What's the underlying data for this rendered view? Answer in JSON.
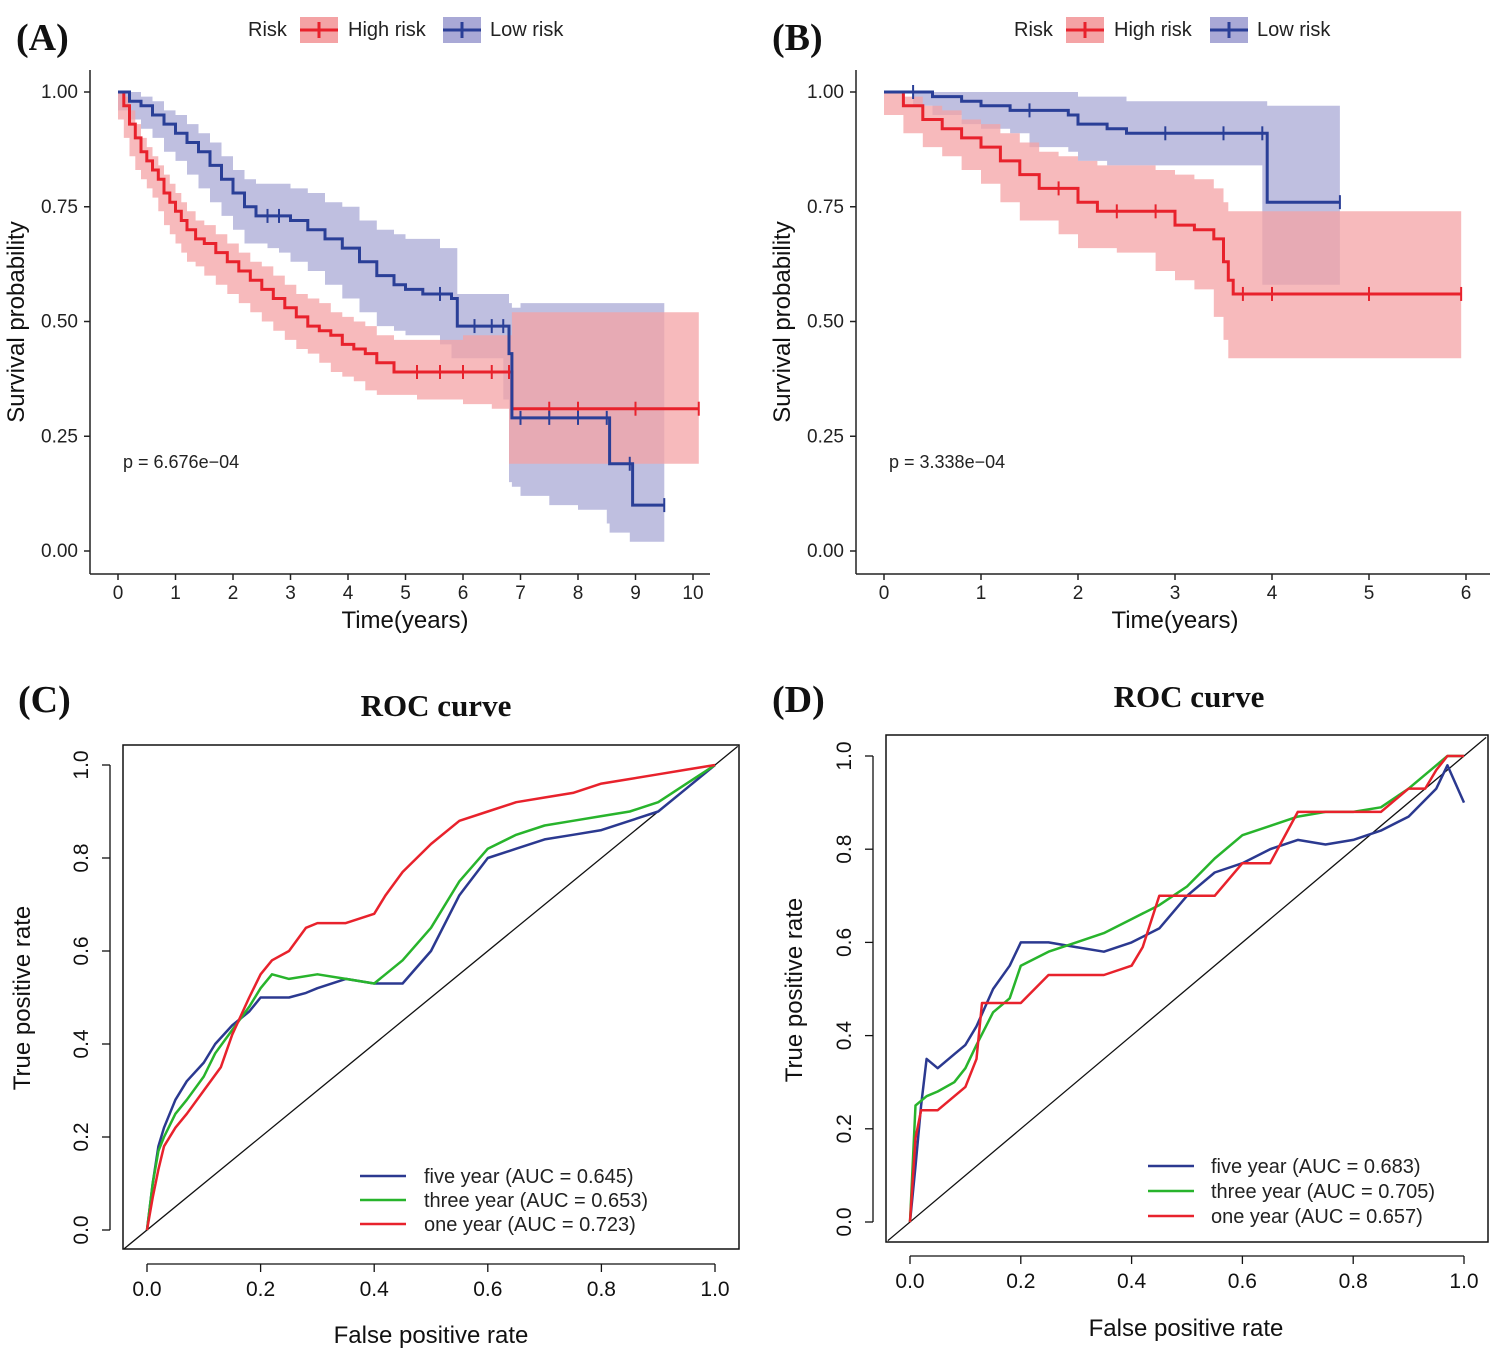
{
  "chart_data": [
    {
      "panel": "(A)",
      "type": "line",
      "subtype": "kaplan-meier",
      "title": "",
      "xlabel": "Time(years)",
      "ylabel": "Survival probability",
      "xlim": [
        0,
        10
      ],
      "ylim": [
        0,
        1
      ],
      "xticks": [
        0,
        1,
        2,
        3,
        4,
        5,
        6,
        7,
        8,
        9,
        10
      ],
      "yticks": [
        0.0,
        0.25,
        0.5,
        0.75,
        1.0
      ],
      "ytick_labels": [
        "0.00",
        "0.25",
        "0.50",
        "0.75",
        "1.00"
      ],
      "legend_title": "Risk",
      "legend_position": "top",
      "annotation": "p = 6.676e−04",
      "series": [
        {
          "name": "High risk",
          "color": "#e8222c",
          "ci_color": "#f4a3a5",
          "x": [
            0,
            0.1,
            0.2,
            0.3,
            0.4,
            0.5,
            0.6,
            0.7,
            0.8,
            0.9,
            1.0,
            1.1,
            1.2,
            1.35,
            1.5,
            1.7,
            1.9,
            2.1,
            2.3,
            2.5,
            2.7,
            2.9,
            3.1,
            3.3,
            3.5,
            3.7,
            3.9,
            4.1,
            4.3,
            4.5,
            4.8,
            5.2,
            5.6,
            6.0,
            6.5,
            6.8,
            6.85,
            7.5,
            8.0,
            9.0,
            10.1
          ],
          "values": [
            1.0,
            0.97,
            0.93,
            0.9,
            0.87,
            0.85,
            0.83,
            0.81,
            0.78,
            0.76,
            0.74,
            0.72,
            0.7,
            0.68,
            0.67,
            0.65,
            0.63,
            0.61,
            0.59,
            0.57,
            0.55,
            0.53,
            0.51,
            0.49,
            0.48,
            0.47,
            0.45,
            0.44,
            0.43,
            0.41,
            0.39,
            0.39,
            0.39,
            0.39,
            0.39,
            0.39,
            0.31,
            0.31,
            0.31,
            0.31,
            0.31
          ],
          "upper": [
            1.0,
            0.99,
            0.96,
            0.93,
            0.9,
            0.88,
            0.86,
            0.84,
            0.82,
            0.8,
            0.78,
            0.76,
            0.74,
            0.72,
            0.71,
            0.69,
            0.67,
            0.65,
            0.63,
            0.62,
            0.6,
            0.58,
            0.56,
            0.55,
            0.54,
            0.52,
            0.51,
            0.5,
            0.49,
            0.47,
            0.46,
            0.46,
            0.46,
            0.47,
            0.47,
            0.47,
            0.52,
            0.52,
            0.52,
            0.52,
            0.52
          ],
          "lower": [
            1.0,
            0.94,
            0.9,
            0.86,
            0.83,
            0.81,
            0.79,
            0.77,
            0.74,
            0.71,
            0.69,
            0.67,
            0.65,
            0.63,
            0.62,
            0.6,
            0.58,
            0.56,
            0.54,
            0.52,
            0.5,
            0.48,
            0.46,
            0.44,
            0.43,
            0.41,
            0.39,
            0.38,
            0.37,
            0.35,
            0.34,
            0.34,
            0.33,
            0.33,
            0.32,
            0.31,
            0.19,
            0.19,
            0.19,
            0.19,
            0.19
          ]
        },
        {
          "name": "Low risk",
          "color": "#2a3f97",
          "ci_color": "#a9a9d6",
          "x": [
            0,
            0.2,
            0.4,
            0.6,
            0.8,
            1.0,
            1.2,
            1.4,
            1.6,
            1.8,
            2.0,
            2.2,
            2.4,
            2.6,
            2.8,
            3.0,
            3.3,
            3.6,
            3.9,
            4.2,
            4.5,
            4.8,
            5.0,
            5.3,
            5.6,
            5.8,
            5.9,
            6.2,
            6.5,
            6.7,
            6.8,
            6.85,
            7.0,
            7.5,
            8.0,
            8.5,
            8.55,
            8.9,
            8.95,
            9.5
          ],
          "values": [
            1.0,
            0.98,
            0.97,
            0.95,
            0.93,
            0.91,
            0.89,
            0.87,
            0.84,
            0.81,
            0.78,
            0.75,
            0.73,
            0.73,
            0.73,
            0.72,
            0.7,
            0.68,
            0.66,
            0.63,
            0.6,
            0.58,
            0.57,
            0.56,
            0.56,
            0.55,
            0.49,
            0.49,
            0.49,
            0.49,
            0.43,
            0.29,
            0.29,
            0.29,
            0.29,
            0.29,
            0.19,
            0.19,
            0.1,
            0.1
          ],
          "upper": [
            1.0,
            1.0,
            0.99,
            0.98,
            0.96,
            0.95,
            0.93,
            0.91,
            0.89,
            0.86,
            0.83,
            0.81,
            0.8,
            0.8,
            0.8,
            0.79,
            0.78,
            0.76,
            0.75,
            0.72,
            0.7,
            0.69,
            0.68,
            0.68,
            0.66,
            0.66,
            0.56,
            0.56,
            0.56,
            0.56,
            0.54,
            0.53,
            0.54,
            0.54,
            0.54,
            0.54,
            0.54,
            0.54,
            0.54,
            0.54
          ],
          "lower": [
            1.0,
            0.96,
            0.94,
            0.92,
            0.9,
            0.87,
            0.85,
            0.82,
            0.79,
            0.76,
            0.73,
            0.7,
            0.67,
            0.67,
            0.66,
            0.65,
            0.63,
            0.61,
            0.58,
            0.55,
            0.52,
            0.49,
            0.48,
            0.47,
            0.47,
            0.45,
            0.42,
            0.42,
            0.42,
            0.42,
            0.33,
            0.15,
            0.14,
            0.12,
            0.1,
            0.09,
            0.06,
            0.04,
            0.02,
            0.02
          ]
        }
      ]
    },
    {
      "panel": "(B)",
      "type": "line",
      "subtype": "kaplan-meier",
      "title": "",
      "xlabel": "Time(years)",
      "ylabel": "Survival probability",
      "xlim": [
        0,
        6
      ],
      "ylim": [
        0,
        1
      ],
      "xticks": [
        0,
        1,
        2,
        3,
        4,
        5,
        6
      ],
      "yticks": [
        0.0,
        0.25,
        0.5,
        0.75,
        1.0
      ],
      "ytick_labels": [
        "0.00",
        "0.25",
        "0.50",
        "0.75",
        "1.00"
      ],
      "legend_title": "Risk",
      "legend_position": "top",
      "annotation": "p = 3.338e−04",
      "series": [
        {
          "name": "High risk",
          "color": "#e8222c",
          "ci_color": "#f4a3a5",
          "x": [
            0,
            0.2,
            0.4,
            0.6,
            0.8,
            1.0,
            1.2,
            1.4,
            1.6,
            1.8,
            2.0,
            2.2,
            2.4,
            2.8,
            3.0,
            3.2,
            3.4,
            3.5,
            3.55,
            3.6,
            3.7,
            4.0,
            5.0,
            5.95
          ],
          "values": [
            1.0,
            0.97,
            0.94,
            0.92,
            0.9,
            0.88,
            0.85,
            0.82,
            0.79,
            0.79,
            0.76,
            0.74,
            0.74,
            0.74,
            0.71,
            0.7,
            0.68,
            0.63,
            0.59,
            0.56,
            0.56,
            0.56,
            0.56,
            0.56
          ],
          "upper": [
            1.0,
            0.99,
            0.97,
            0.96,
            0.94,
            0.93,
            0.91,
            0.89,
            0.87,
            0.86,
            0.85,
            0.84,
            0.84,
            0.83,
            0.82,
            0.81,
            0.79,
            0.76,
            0.74,
            0.74,
            0.74,
            0.74,
            0.74,
            0.74
          ],
          "lower": [
            1.0,
            0.95,
            0.91,
            0.88,
            0.86,
            0.83,
            0.8,
            0.76,
            0.72,
            0.72,
            0.69,
            0.66,
            0.66,
            0.65,
            0.61,
            0.59,
            0.57,
            0.51,
            0.46,
            0.42,
            0.42,
            0.42,
            0.42,
            0.42
          ]
        },
        {
          "name": "Low risk",
          "color": "#2a3f97",
          "ci_color": "#a9a9d6",
          "x": [
            0,
            0.3,
            0.5,
            0.8,
            1.0,
            1.3,
            1.5,
            1.9,
            2.0,
            2.3,
            2.5,
            2.9,
            3.5,
            3.9,
            3.95,
            4.7
          ],
          "values": [
            1.0,
            1.0,
            0.99,
            0.98,
            0.97,
            0.96,
            0.96,
            0.95,
            0.93,
            0.92,
            0.91,
            0.91,
            0.91,
            0.91,
            0.76,
            0.76
          ],
          "upper": [
            1.0,
            1.0,
            1.0,
            1.0,
            1.0,
            1.0,
            1.0,
            1.0,
            0.99,
            0.99,
            0.98,
            0.98,
            0.98,
            0.98,
            0.97,
            0.97
          ],
          "lower": [
            1.0,
            1.0,
            0.97,
            0.95,
            0.93,
            0.92,
            0.91,
            0.88,
            0.87,
            0.85,
            0.84,
            0.84,
            0.84,
            0.84,
            0.58,
            0.58
          ]
        }
      ]
    },
    {
      "panel": "(C)",
      "type": "line",
      "subtype": "roc",
      "title": "ROC curve",
      "xlabel": "False positive rate",
      "ylabel": "True positive rate",
      "xlim": [
        0,
        1
      ],
      "ylim": [
        0,
        1
      ],
      "xticks": [
        0.0,
        0.2,
        0.4,
        0.6,
        0.8,
        1.0
      ],
      "yticks": [
        0.0,
        0.2,
        0.4,
        0.6,
        0.8,
        1.0
      ],
      "tick_labels": [
        "0.0",
        "0.2",
        "0.4",
        "0.6",
        "0.8",
        "1.0"
      ],
      "legend_position": "bottom-right",
      "series": [
        {
          "name": "five year",
          "label": "five year (AUC = 0.645)",
          "auc": 0.645,
          "color": "#2b3990",
          "x": [
            0.0,
            0.01,
            0.02,
            0.03,
            0.05,
            0.07,
            0.1,
            0.12,
            0.15,
            0.18,
            0.2,
            0.22,
            0.25,
            0.28,
            0.3,
            0.35,
            0.4,
            0.45,
            0.5,
            0.55,
            0.6,
            0.65,
            0.7,
            0.75,
            0.8,
            0.85,
            0.9,
            0.95,
            1.0
          ],
          "values": [
            0.0,
            0.1,
            0.18,
            0.22,
            0.28,
            0.32,
            0.36,
            0.4,
            0.44,
            0.47,
            0.5,
            0.5,
            0.5,
            0.51,
            0.52,
            0.54,
            0.53,
            0.53,
            0.6,
            0.72,
            0.8,
            0.82,
            0.84,
            0.85,
            0.86,
            0.88,
            0.9,
            0.95,
            1.0
          ]
        },
        {
          "name": "three year",
          "label": "three year (AUC = 0.653)",
          "auc": 0.653,
          "color": "#28b42c",
          "x": [
            0.0,
            0.01,
            0.02,
            0.03,
            0.05,
            0.07,
            0.1,
            0.12,
            0.15,
            0.18,
            0.2,
            0.22,
            0.25,
            0.3,
            0.35,
            0.4,
            0.45,
            0.5,
            0.55,
            0.6,
            0.65,
            0.7,
            0.75,
            0.8,
            0.85,
            0.9,
            0.95,
            1.0
          ],
          "values": [
            0.0,
            0.1,
            0.17,
            0.2,
            0.25,
            0.28,
            0.33,
            0.38,
            0.43,
            0.48,
            0.52,
            0.55,
            0.54,
            0.55,
            0.54,
            0.53,
            0.58,
            0.65,
            0.75,
            0.82,
            0.85,
            0.87,
            0.88,
            0.89,
            0.9,
            0.92,
            0.96,
            1.0
          ]
        },
        {
          "name": "one year",
          "label": "one year (AUC = 0.723)",
          "auc": 0.723,
          "color": "#e8222c",
          "x": [
            0.0,
            0.01,
            0.02,
            0.03,
            0.05,
            0.07,
            0.1,
            0.13,
            0.15,
            0.18,
            0.2,
            0.22,
            0.25,
            0.28,
            0.3,
            0.35,
            0.4,
            0.42,
            0.45,
            0.5,
            0.55,
            0.6,
            0.65,
            0.7,
            0.75,
            0.8,
            0.85,
            0.9,
            0.95,
            1.0
          ],
          "values": [
            0.0,
            0.07,
            0.13,
            0.18,
            0.22,
            0.25,
            0.3,
            0.35,
            0.42,
            0.5,
            0.55,
            0.58,
            0.6,
            0.65,
            0.66,
            0.66,
            0.68,
            0.72,
            0.77,
            0.83,
            0.88,
            0.9,
            0.92,
            0.93,
            0.94,
            0.96,
            0.97,
            0.98,
            0.99,
            1.0
          ]
        }
      ],
      "reference_line": "diagonal"
    },
    {
      "panel": "(D)",
      "type": "line",
      "subtype": "roc",
      "title": "ROC curve",
      "xlabel": "False positive rate",
      "ylabel": "True positive rate",
      "xlim": [
        0,
        1
      ],
      "ylim": [
        0,
        1
      ],
      "xticks": [
        0.0,
        0.2,
        0.4,
        0.6,
        0.8,
        1.0
      ],
      "yticks": [
        0.0,
        0.2,
        0.4,
        0.6,
        0.8,
        1.0
      ],
      "tick_labels": [
        "0.0",
        "0.2",
        "0.4",
        "0.6",
        "0.8",
        "1.0"
      ],
      "legend_position": "bottom-right",
      "series": [
        {
          "name": "five year",
          "label": "five year (AUC = 0.683)",
          "auc": 0.683,
          "color": "#2b3990",
          "x": [
            0.0,
            0.01,
            0.02,
            0.03,
            0.05,
            0.08,
            0.1,
            0.12,
            0.15,
            0.18,
            0.2,
            0.25,
            0.3,
            0.35,
            0.4,
            0.45,
            0.5,
            0.55,
            0.6,
            0.65,
            0.7,
            0.75,
            0.8,
            0.85,
            0.9,
            0.95,
            0.97,
            1.0
          ],
          "values": [
            0.0,
            0.12,
            0.25,
            0.35,
            0.33,
            0.36,
            0.38,
            0.42,
            0.5,
            0.55,
            0.6,
            0.6,
            0.59,
            0.58,
            0.6,
            0.63,
            0.7,
            0.75,
            0.77,
            0.8,
            0.82,
            0.81,
            0.82,
            0.84,
            0.87,
            0.93,
            0.98,
            0.9
          ]
        },
        {
          "name": "three year",
          "label": "three year (AUC = 0.705)",
          "auc": 0.705,
          "color": "#28b42c",
          "x": [
            0.0,
            0.01,
            0.02,
            0.03,
            0.05,
            0.08,
            0.1,
            0.12,
            0.15,
            0.18,
            0.2,
            0.25,
            0.3,
            0.35,
            0.4,
            0.45,
            0.5,
            0.55,
            0.6,
            0.65,
            0.7,
            0.75,
            0.8,
            0.85,
            0.9,
            0.95,
            0.97,
            1.0
          ],
          "values": [
            0.0,
            0.25,
            0.26,
            0.27,
            0.28,
            0.3,
            0.33,
            0.38,
            0.45,
            0.48,
            0.55,
            0.58,
            0.6,
            0.62,
            0.65,
            0.68,
            0.72,
            0.78,
            0.83,
            0.85,
            0.87,
            0.88,
            0.88,
            0.89,
            0.93,
            0.98,
            1.0,
            1.0
          ]
        },
        {
          "name": "one year",
          "label": "one year (AUC = 0.657)",
          "auc": 0.657,
          "color": "#e8222c",
          "x": [
            0.0,
            0.01,
            0.02,
            0.05,
            0.1,
            0.12,
            0.13,
            0.2,
            0.25,
            0.3,
            0.35,
            0.4,
            0.42,
            0.45,
            0.5,
            0.55,
            0.6,
            0.65,
            0.7,
            0.72,
            0.75,
            0.8,
            0.85,
            0.9,
            0.93,
            0.95,
            0.97,
            1.0
          ],
          "values": [
            0.0,
            0.18,
            0.24,
            0.24,
            0.29,
            0.35,
            0.47,
            0.47,
            0.53,
            0.53,
            0.53,
            0.55,
            0.59,
            0.7,
            0.7,
            0.7,
            0.77,
            0.77,
            0.88,
            0.88,
            0.88,
            0.88,
            0.88,
            0.93,
            0.93,
            0.97,
            1.0,
            1.0
          ]
        }
      ],
      "reference_line": "diagonal"
    }
  ]
}
